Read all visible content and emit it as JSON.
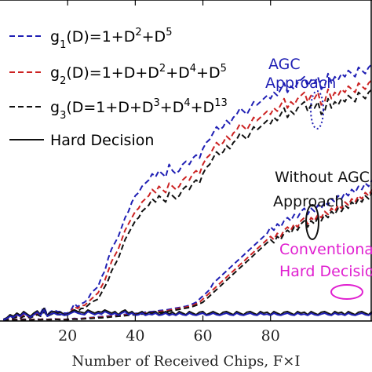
{
  "chart_data": {
    "type": "line",
    "title": "",
    "xlabel": "Number of Received Chips, F×I",
    "ylabel": "",
    "xlim": [
      0,
      110
    ],
    "ylim": [
      0,
      1.0
    ],
    "xticks": [
      20,
      40,
      60,
      80
    ],
    "grid": false,
    "legend_position": "top-left",
    "legend": [
      {
        "pre": "g",
        "sub": "1",
        "post": "(D)=1+D",
        "sup": "2",
        "tail": "+D",
        "sup2": "5"
      },
      {
        "pre": "g",
        "sub": "2",
        "post": "(D)=1+D+D",
        "sup": "2",
        "tail": "+D",
        "sup2": "4",
        "tail2": "+D",
        "sup3": "5"
      },
      {
        "pre": "g",
        "sub": "3",
        "post": "(D=1+D+D",
        "sup": "3",
        "tail": "+D",
        "sup2": "4",
        "tail2": "+D",
        "sup3": "13"
      },
      {
        "text": "Hard Decision"
      }
    ],
    "annotations": {
      "agc_1": "AGC",
      "agc_2": "Approach",
      "noagc_1": "Without AGC",
      "noagc_2": "Approach",
      "conv_1": "Conventional",
      "conv_2": "Hard Decision"
    },
    "x": [
      1,
      2,
      3,
      4,
      5,
      6,
      7,
      8,
      9,
      10,
      11,
      12,
      13,
      14,
      15,
      16,
      17,
      18,
      19,
      20,
      21,
      22,
      23,
      24,
      25,
      26,
      27,
      28,
      29,
      30,
      31,
      32,
      33,
      34,
      35,
      36,
      37,
      38,
      39,
      40,
      41,
      42,
      43,
      44,
      45,
      46,
      47,
      48,
      49,
      50,
      51,
      52,
      53,
      54,
      55,
      56,
      57,
      58,
      59,
      60,
      61,
      62,
      63,
      64,
      65,
      66,
      67,
      68,
      69,
      70,
      71,
      72,
      73,
      74,
      75,
      76,
      77,
      78,
      79,
      80,
      81,
      82,
      83,
      84,
      85,
      86,
      87,
      88,
      89,
      90,
      91,
      92,
      93,
      94,
      95,
      96,
      97,
      98,
      99,
      100,
      101,
      102,
      103,
      104,
      105,
      106,
      107,
      108,
      109,
      110
    ],
    "series": [
      {
        "name": "agc_g1",
        "color": "#1f1fb4",
        "dash": "7,4",
        "values": [
          0.005,
          0.01,
          0.015,
          0.01,
          0.02,
          0.015,
          0.025,
          0.02,
          0.015,
          0.02,
          0.03,
          0.025,
          0.045,
          0.02,
          0.03,
          0.035,
          0.03,
          0.03,
          0.025,
          0.025,
          0.035,
          0.055,
          0.045,
          0.055,
          0.06,
          0.07,
          0.09,
          0.1,
          0.11,
          0.14,
          0.16,
          0.2,
          0.23,
          0.25,
          0.27,
          0.3,
          0.33,
          0.35,
          0.38,
          0.4,
          0.41,
          0.43,
          0.44,
          0.45,
          0.47,
          0.46,
          0.48,
          0.47,
          0.46,
          0.5,
          0.48,
          0.47,
          0.48,
          0.5,
          0.51,
          0.5,
          0.52,
          0.53,
          0.52,
          0.55,
          0.57,
          0.58,
          0.6,
          0.62,
          0.61,
          0.62,
          0.64,
          0.63,
          0.65,
          0.66,
          0.68,
          0.67,
          0.66,
          0.68,
          0.7,
          0.69,
          0.7,
          0.71,
          0.72,
          0.71,
          0.73,
          0.72,
          0.74,
          0.76,
          0.73,
          0.75,
          0.74,
          0.76,
          0.77,
          0.78,
          0.75,
          0.77,
          0.76,
          0.78,
          0.74,
          0.75,
          0.79,
          0.76,
          0.78,
          0.77,
          0.79,
          0.78,
          0.8,
          0.79,
          0.78,
          0.81,
          0.8,
          0.79,
          0.81,
          0.82
        ]
      },
      {
        "name": "agc_g2",
        "color": "#cc2222",
        "dash": "7,4",
        "values": [
          0.005,
          0.008,
          0.01,
          0.012,
          0.015,
          0.01,
          0.02,
          0.015,
          0.012,
          0.018,
          0.025,
          0.02,
          0.035,
          0.018,
          0.025,
          0.03,
          0.025,
          0.025,
          0.02,
          0.022,
          0.03,
          0.045,
          0.04,
          0.05,
          0.05,
          0.06,
          0.07,
          0.08,
          0.09,
          0.11,
          0.13,
          0.16,
          0.19,
          0.21,
          0.23,
          0.26,
          0.29,
          0.31,
          0.33,
          0.35,
          0.36,
          0.38,
          0.39,
          0.4,
          0.42,
          0.41,
          0.43,
          0.42,
          0.41,
          0.44,
          0.43,
          0.42,
          0.43,
          0.45,
          0.46,
          0.45,
          0.47,
          0.48,
          0.47,
          0.5,
          0.52,
          0.53,
          0.55,
          0.57,
          0.56,
          0.57,
          0.59,
          0.58,
          0.6,
          0.61,
          0.63,
          0.62,
          0.61,
          0.63,
          0.65,
          0.64,
          0.65,
          0.66,
          0.67,
          0.66,
          0.68,
          0.67,
          0.69,
          0.71,
          0.68,
          0.7,
          0.69,
          0.71,
          0.72,
          0.73,
          0.7,
          0.72,
          0.71,
          0.73,
          0.69,
          0.7,
          0.74,
          0.71,
          0.73,
          0.72,
          0.74,
          0.73,
          0.75,
          0.74,
          0.73,
          0.76,
          0.75,
          0.74,
          0.76,
          0.77
        ]
      },
      {
        "name": "agc_g3",
        "color": "#111111",
        "dash": "7,4",
        "values": [
          0.004,
          0.006,
          0.008,
          0.01,
          0.012,
          0.008,
          0.015,
          0.012,
          0.01,
          0.015,
          0.02,
          0.015,
          0.03,
          0.015,
          0.02,
          0.025,
          0.02,
          0.02,
          0.018,
          0.02,
          0.025,
          0.035,
          0.03,
          0.04,
          0.04,
          0.05,
          0.06,
          0.065,
          0.07,
          0.09,
          0.11,
          0.13,
          0.16,
          0.18,
          0.2,
          0.23,
          0.26,
          0.28,
          0.3,
          0.32,
          0.33,
          0.35,
          0.36,
          0.37,
          0.39,
          0.38,
          0.4,
          0.39,
          0.38,
          0.41,
          0.4,
          0.39,
          0.4,
          0.42,
          0.43,
          0.42,
          0.44,
          0.45,
          0.44,
          0.47,
          0.49,
          0.5,
          0.52,
          0.54,
          0.53,
          0.54,
          0.56,
          0.55,
          0.57,
          0.58,
          0.6,
          0.59,
          0.58,
          0.6,
          0.62,
          0.61,
          0.62,
          0.63,
          0.64,
          0.63,
          0.65,
          0.64,
          0.66,
          0.68,
          0.65,
          0.67,
          0.66,
          0.68,
          0.69,
          0.7,
          0.67,
          0.69,
          0.68,
          0.7,
          0.66,
          0.67,
          0.71,
          0.68,
          0.7,
          0.69,
          0.71,
          0.7,
          0.72,
          0.71,
          0.7,
          0.73,
          0.72,
          0.71,
          0.73,
          0.74
        ]
      },
      {
        "name": "noagc_g1",
        "color": "#1f1fb4",
        "dash": "7,4",
        "values": [
          0.003,
          0.005,
          0.004,
          0.006,
          0.005,
          0.004,
          0.006,
          0.005,
          0.004,
          0.005,
          0.006,
          0.005,
          0.007,
          0.005,
          0.006,
          0.007,
          0.006,
          0.006,
          0.005,
          0.006,
          0.007,
          0.008,
          0.007,
          0.008,
          0.009,
          0.01,
          0.011,
          0.012,
          0.013,
          0.014,
          0.015,
          0.016,
          0.017,
          0.018,
          0.019,
          0.02,
          0.021,
          0.022,
          0.023,
          0.024,
          0.025,
          0.027,
          0.028,
          0.029,
          0.03,
          0.031,
          0.033,
          0.034,
          0.035,
          0.037,
          0.039,
          0.041,
          0.043,
          0.045,
          0.047,
          0.05,
          0.055,
          0.06,
          0.07,
          0.08,
          0.09,
          0.1,
          0.12,
          0.13,
          0.14,
          0.15,
          0.16,
          0.17,
          0.18,
          0.19,
          0.2,
          0.21,
          0.22,
          0.23,
          0.24,
          0.25,
          0.26,
          0.27,
          0.28,
          0.3,
          0.29,
          0.31,
          0.3,
          0.32,
          0.33,
          0.32,
          0.34,
          0.33,
          0.35,
          0.36,
          0.34,
          0.36,
          0.35,
          0.37,
          0.36,
          0.38,
          0.37,
          0.39,
          0.38,
          0.4,
          0.39,
          0.41,
          0.4,
          0.42,
          0.41,
          0.43,
          0.42,
          0.44,
          0.43,
          0.45
        ]
      },
      {
        "name": "noagc_g2",
        "color": "#cc2222",
        "dash": "7,4",
        "values": [
          0.003,
          0.004,
          0.004,
          0.005,
          0.004,
          0.004,
          0.005,
          0.004,
          0.004,
          0.005,
          0.005,
          0.005,
          0.006,
          0.005,
          0.005,
          0.006,
          0.006,
          0.005,
          0.005,
          0.005,
          0.006,
          0.007,
          0.006,
          0.007,
          0.008,
          0.009,
          0.01,
          0.01,
          0.011,
          0.012,
          0.013,
          0.014,
          0.015,
          0.016,
          0.017,
          0.018,
          0.019,
          0.02,
          0.021,
          0.022,
          0.023,
          0.024,
          0.025,
          0.026,
          0.027,
          0.028,
          0.03,
          0.031,
          0.032,
          0.034,
          0.036,
          0.038,
          0.04,
          0.042,
          0.044,
          0.046,
          0.05,
          0.055,
          0.06,
          0.07,
          0.08,
          0.09,
          0.1,
          0.11,
          0.12,
          0.13,
          0.14,
          0.15,
          0.16,
          0.17,
          0.18,
          0.19,
          0.2,
          0.21,
          0.22,
          0.23,
          0.24,
          0.25,
          0.26,
          0.27,
          0.26,
          0.28,
          0.27,
          0.29,
          0.3,
          0.29,
          0.31,
          0.3,
          0.32,
          0.33,
          0.31,
          0.33,
          0.32,
          0.34,
          0.33,
          0.35,
          0.34,
          0.36,
          0.35,
          0.37,
          0.36,
          0.38,
          0.37,
          0.39,
          0.38,
          0.4,
          0.39,
          0.41,
          0.4,
          0.42
        ]
      },
      {
        "name": "noagc_g3",
        "color": "#111111",
        "dash": "7,4",
        "values": [
          0.002,
          0.003,
          0.003,
          0.004,
          0.003,
          0.003,
          0.004,
          0.003,
          0.003,
          0.004,
          0.004,
          0.004,
          0.005,
          0.004,
          0.004,
          0.005,
          0.005,
          0.004,
          0.004,
          0.004,
          0.005,
          0.006,
          0.005,
          0.006,
          0.007,
          0.008,
          0.008,
          0.009,
          0.01,
          0.01,
          0.011,
          0.012,
          0.013,
          0.014,
          0.015,
          0.016,
          0.017,
          0.018,
          0.019,
          0.02,
          0.021,
          0.022,
          0.023,
          0.024,
          0.025,
          0.026,
          0.027,
          0.028,
          0.029,
          0.031,
          0.033,
          0.035,
          0.037,
          0.039,
          0.041,
          0.043,
          0.046,
          0.05,
          0.055,
          0.06,
          0.07,
          0.08,
          0.09,
          0.1,
          0.11,
          0.12,
          0.13,
          0.14,
          0.15,
          0.16,
          0.17,
          0.18,
          0.19,
          0.2,
          0.21,
          0.22,
          0.23,
          0.24,
          0.25,
          0.26,
          0.25,
          0.27,
          0.26,
          0.28,
          0.29,
          0.28,
          0.3,
          0.29,
          0.31,
          0.32,
          0.3,
          0.32,
          0.31,
          0.33,
          0.32,
          0.34,
          0.33,
          0.35,
          0.34,
          0.36,
          0.35,
          0.37,
          0.36,
          0.38,
          0.37,
          0.39,
          0.38,
          0.4,
          0.39,
          0.41
        ]
      },
      {
        "name": "hard_agc",
        "color": "#111111",
        "dash": "",
        "values": [
          0.005,
          0.01,
          0.02,
          0.015,
          0.025,
          0.018,
          0.03,
          0.022,
          0.015,
          0.025,
          0.032,
          0.02,
          0.04,
          0.018,
          0.028,
          0.03,
          0.025,
          0.028,
          0.02,
          0.022,
          0.03,
          0.035,
          0.03,
          0.028,
          0.025,
          0.035,
          0.03,
          0.025,
          0.03,
          0.028,
          0.035,
          0.03,
          0.025,
          0.03,
          0.02,
          0.03,
          0.035,
          0.025,
          0.03,
          0.02,
          0.025,
          0.03,
          0.02,
          0.028,
          0.025,
          0.03,
          0.02,
          0.025,
          0.03,
          0.022,
          0.028,
          0.02,
          0.03,
          0.025,
          0.02,
          0.03,
          0.025,
          0.02,
          0.028,
          0.03,
          0.02,
          0.025,
          0.03,
          0.025,
          0.02,
          0.028,
          0.03,
          0.025,
          0.02,
          0.03,
          0.025,
          0.02,
          0.028,
          0.03,
          0.025,
          0.02,
          0.03,
          0.025,
          0.028,
          0.02,
          0.03,
          0.025,
          0.02,
          0.028,
          0.03,
          0.025,
          0.02,
          0.03,
          0.025,
          0.028,
          0.02,
          0.03,
          0.025,
          0.02,
          0.028,
          0.03,
          0.025,
          0.02,
          0.03,
          0.025,
          0.028,
          0.02,
          0.03,
          0.025,
          0.02,
          0.028,
          0.03,
          0.025,
          0.02,
          0.03
        ]
      },
      {
        "name": "hard_conventional",
        "color": "#1f1fb4",
        "dash": "",
        "values": [
          0.003,
          0.008,
          0.015,
          0.012,
          0.02,
          0.015,
          0.025,
          0.018,
          0.012,
          0.02,
          0.028,
          0.018,
          0.035,
          0.015,
          0.022,
          0.025,
          0.02,
          0.022,
          0.018,
          0.02,
          0.025,
          0.03,
          0.025,
          0.022,
          0.02,
          0.03,
          0.025,
          0.02,
          0.025,
          0.022,
          0.03,
          0.025,
          0.02,
          0.025,
          0.018,
          0.025,
          0.03,
          0.02,
          0.025,
          0.018,
          0.02,
          0.025,
          0.018,
          0.022,
          0.02,
          0.025,
          0.018,
          0.02,
          0.025,
          0.018,
          0.022,
          0.018,
          0.025,
          0.02,
          0.018,
          0.025,
          0.02,
          0.018,
          0.022,
          0.025,
          0.018,
          0.02,
          0.025,
          0.02,
          0.018,
          0.022,
          0.025,
          0.02,
          0.018,
          0.025,
          0.02,
          0.018,
          0.022,
          0.025,
          0.02,
          0.018,
          0.025,
          0.02,
          0.022,
          0.018,
          0.025,
          0.02,
          0.018,
          0.022,
          0.025,
          0.02,
          0.018,
          0.025,
          0.02,
          0.022,
          0.018,
          0.025,
          0.02,
          0.018,
          0.022,
          0.025,
          0.02,
          0.018,
          0.025,
          0.02,
          0.022,
          0.018,
          0.025,
          0.02,
          0.018,
          0.022,
          0.025,
          0.02,
          0.018,
          0.025
        ]
      }
    ],
    "colors": {
      "blue": "#1f1fb4",
      "red": "#cc2222",
      "black": "#111111",
      "magenta": "#e020d0"
    }
  }
}
